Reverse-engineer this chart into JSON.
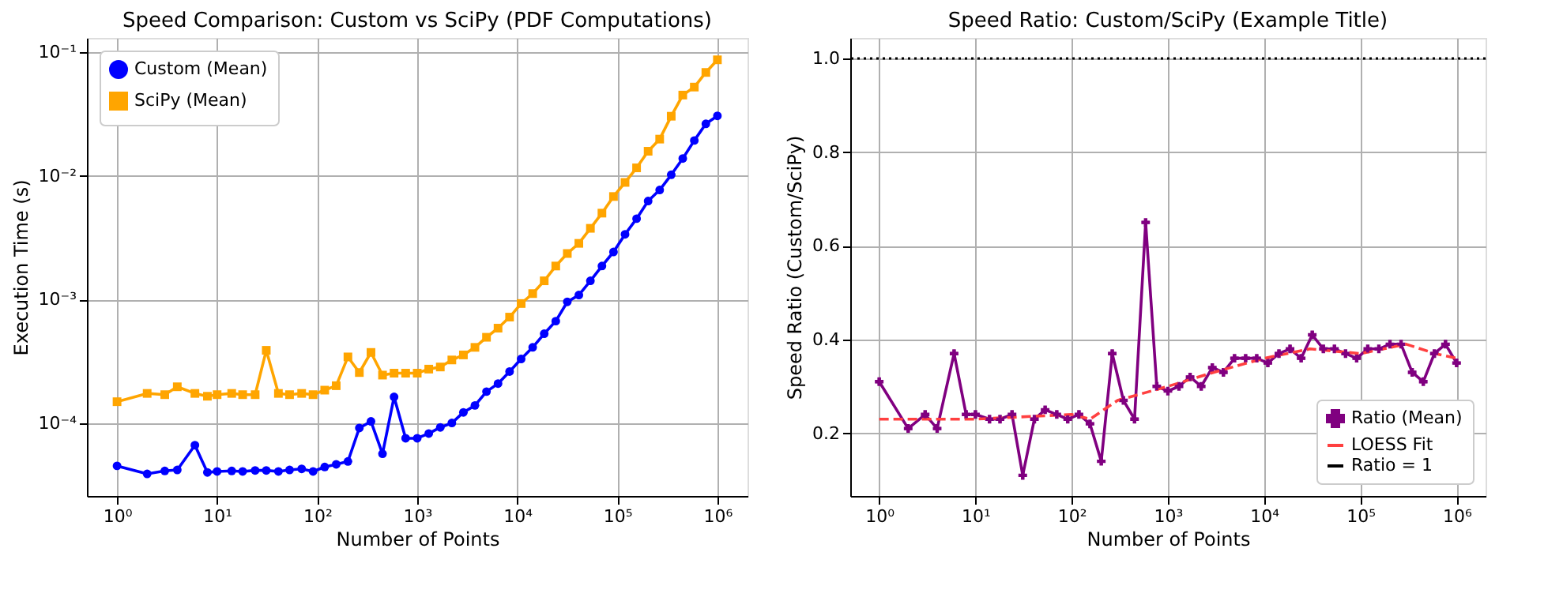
{
  "chart_data": [
    {
      "type": "line",
      "title": "Speed Comparison: Custom vs SciPy (PDF Computations)",
      "xlabel": "Number of Points",
      "ylabel": "Execution Time (s)",
      "log": "xy",
      "grid": true,
      "legend": "top left",
      "x": [
        1,
        2,
        3,
        4,
        6,
        8,
        10,
        14,
        18,
        24,
        31,
        41,
        53,
        70,
        91,
        119,
        155,
        203,
        264,
        345,
        450,
        587,
        766,
        1000,
        1304,
        1701,
        2219,
        2894,
        3775,
        4924,
        6422,
        8377,
        10926,
        14251,
        18587,
        24244,
        31623,
        41246,
        53798,
        70170,
        91525,
        119378,
        155706,
        203091,
        264895,
        345510,
        450657,
        587802,
        766682,
        1000000
      ],
      "xlim": [
        0.5,
        2000000
      ],
      "xticks": [
        {
          "value": 1,
          "label": "10⁰"
        },
        {
          "value": 10,
          "label": "10¹"
        },
        {
          "value": 100,
          "label": "10²"
        },
        {
          "value": 1000,
          "label": "10³"
        },
        {
          "value": 10000,
          "label": "10⁴"
        },
        {
          "value": 100000,
          "label": "10⁵"
        },
        {
          "value": 1000000,
          "label": "10⁶"
        }
      ],
      "ylim": [
        2.6e-05,
        0.13
      ],
      "yticks": [
        {
          "value": 0.0001,
          "label": "10⁻⁴"
        },
        {
          "value": 0.001,
          "label": "10⁻³"
        },
        {
          "value": 0.01,
          "label": "10⁻²"
        },
        {
          "value": 0.1,
          "label": "10⁻¹"
        }
      ],
      "series": [
        {
          "name": "Custom (Mean)",
          "color": "#0000ff",
          "marker": "circle",
          "line_style": "solid",
          "values": [
            4.55e-05,
            3.92e-05,
            4.14e-05,
            4.22e-05,
            6.68e-05,
            4.03e-05,
            4.1e-05,
            4.14e-05,
            4.1e-05,
            4.18e-05,
            4.18e-05,
            4.1e-05,
            4.22e-05,
            4.3e-05,
            4.1e-05,
            4.46e-05,
            4.68e-05,
            4.94e-05,
            9.2e-05,
            0.000104,
            5.7e-05,
            0.000164,
            7.6e-05,
            7.6e-05,
            8.3e-05,
            9.3e-05,
            0.000101,
            0.000123,
            0.00014,
            0.000181,
            0.00021,
            0.000263,
            0.000332,
            0.000412,
            0.000531,
            0.000671,
            0.00096,
            0.00109,
            0.00142,
            0.00187,
            0.00243,
            0.00337,
            0.00451,
            0.00626,
            0.00769,
            0.0102,
            0.0138,
            0.0193,
            0.0263,
            0.0305
          ]
        },
        {
          "name": "SciPy (Mean)",
          "color": "#ffa500",
          "marker": "square",
          "line_style": "solid",
          "values": [
            0.00015,
            0.000175,
            0.000171,
            0.000198,
            0.000175,
            0.000166,
            0.000171,
            0.000175,
            0.000171,
            0.000171,
            0.00039,
            0.000175,
            0.000171,
            0.000175,
            0.000171,
            0.000186,
            0.000202,
            0.000345,
            0.000258,
            0.000375,
            0.000246,
            0.000255,
            0.000255,
            0.000255,
            0.000275,
            0.000286,
            0.000326,
            0.000358,
            0.000412,
            0.000497,
            0.000589,
            0.000723,
            0.000931,
            0.00112,
            0.00142,
            0.00187,
            0.00236,
            0.00285,
            0.00377,
            0.005,
            0.00681,
            0.00885,
            0.0116,
            0.0158,
            0.0198,
            0.0303,
            0.0449,
            0.0521,
            0.0684,
            0.0865
          ]
        }
      ]
    },
    {
      "type": "line",
      "title": "Speed Ratio: Custom/SciPy (Example Title)",
      "xlabel": "Number of Points",
      "ylabel": "Speed Ratio (Custom/SciPy)",
      "log": "x",
      "grid": true,
      "legend": "bottom right",
      "x": [
        1,
        2,
        3,
        4,
        6,
        8,
        10,
        14,
        18,
        24,
        31,
        41,
        53,
        70,
        91,
        119,
        155,
        203,
        264,
        345,
        450,
        587,
        766,
        1000,
        1304,
        1701,
        2219,
        2894,
        3775,
        4924,
        6422,
        8377,
        10926,
        14251,
        18587,
        24244,
        31623,
        41246,
        53798,
        70170,
        91525,
        119378,
        155706,
        203091,
        264895,
        345510,
        450657,
        587802,
        766682,
        1000000
      ],
      "xlim": [
        0.5,
        2000000
      ],
      "xticks": [
        {
          "value": 1,
          "label": "10⁰"
        },
        {
          "value": 10,
          "label": "10¹"
        },
        {
          "value": 100,
          "label": "10²"
        },
        {
          "value": 1000,
          "label": "10³"
        },
        {
          "value": 10000,
          "label": "10⁴"
        },
        {
          "value": 100000,
          "label": "10⁵"
        },
        {
          "value": 1000000,
          "label": "10⁶"
        }
      ],
      "ylim": [
        0.066,
        1.044
      ],
      "yticks": [
        0.2,
        0.4,
        0.6,
        0.8,
        {
          "value": 1,
          "label": "1.0"
        }
      ],
      "series": [
        {
          "name": "Ratio (Mean)",
          "color": "#800080",
          "marker": "cross",
          "line_style": "solid",
          "values": [
            0.31,
            0.21,
            0.24,
            0.21,
            0.37,
            0.24,
            0.24,
            0.23,
            0.23,
            0.24,
            0.11,
            0.23,
            0.25,
            0.24,
            0.23,
            0.24,
            0.22,
            0.14,
            0.37,
            0.27,
            0.23,
            0.65,
            0.3,
            0.29,
            0.3,
            0.32,
            0.3,
            0.34,
            0.33,
            0.36,
            0.36,
            0.36,
            0.35,
            0.37,
            0.38,
            0.36,
            0.41,
            0.38,
            0.38,
            0.37,
            0.36,
            0.38,
            0.38,
            0.39,
            0.39,
            0.33,
            0.31,
            0.37,
            0.39,
            0.35
          ]
        },
        {
          "name": "LOESS Fit",
          "color": "#ff4040",
          "marker": "none",
          "line_style": "dashed",
          "x": [
            1,
            10,
            100,
            155,
            300,
            1000,
            3000,
            10000,
            30000,
            100000,
            300000,
            600000,
            1000000
          ],
          "values": [
            0.23,
            0.23,
            0.24,
            0.23,
            0.27,
            0.3,
            0.33,
            0.36,
            0.38,
            0.37,
            0.39,
            0.37,
            0.36
          ]
        }
      ],
      "ref_lines": [
        {
          "axis": "y",
          "value": 1,
          "label": "Ratio = 1",
          "color": "#000000",
          "line_style": "dotted"
        }
      ]
    }
  ]
}
